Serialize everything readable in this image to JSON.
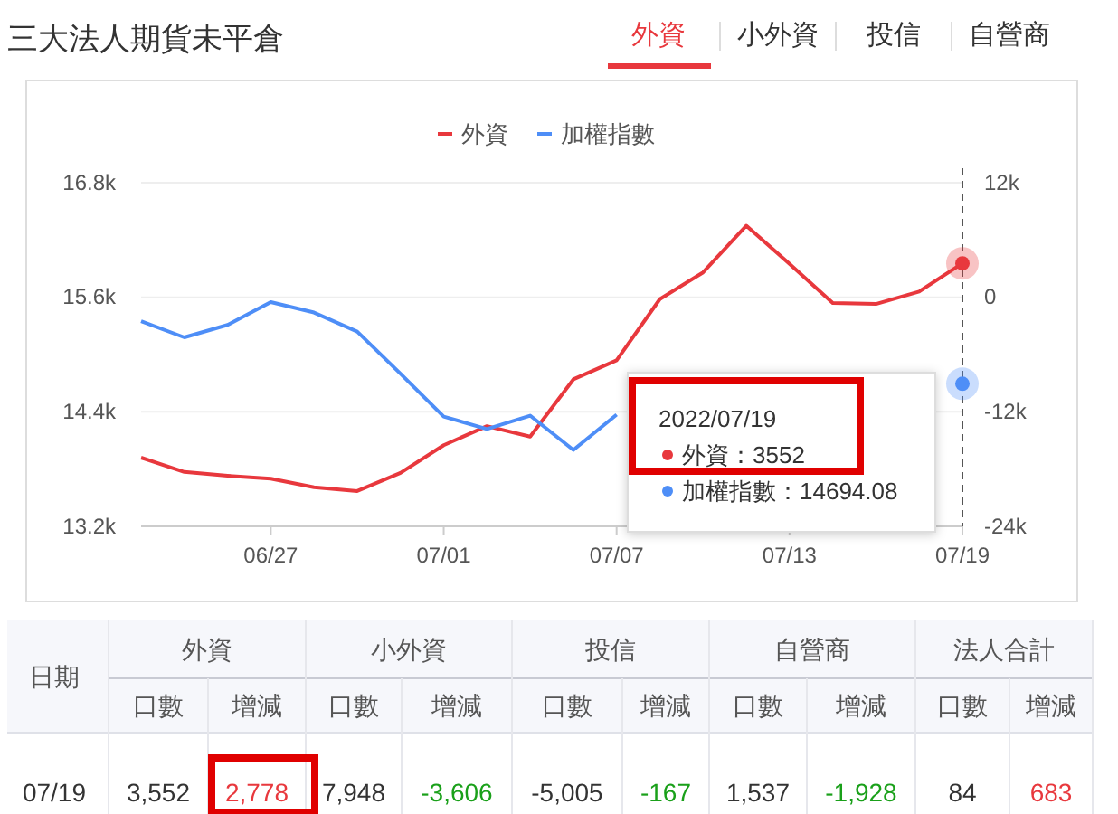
{
  "chart_data": [
    {
      "type": "other",
      "title": "三大法人期貨未平倉",
      "categories": [
        "外資",
        "小外資",
        "投信",
        "自營商"
      ]
    },
    {
      "type": "line",
      "categories": [
        null,
        null,
        null,
        "06/27",
        null,
        null,
        null,
        "07/01",
        null,
        null,
        null,
        "07/07",
        null,
        null,
        null,
        "07/13",
        null,
        null,
        null,
        "07/19"
      ],
      "series": [
        {
          "name": "外資",
          "color": "#e8383d",
          "axis": "y2",
          "values": [
            -16800,
            -18300,
            -18700,
            -19000,
            -19900,
            -20300,
            -18400,
            -15500,
            -13500,
            -14600,
            -8600,
            -6600,
            -200,
            2600,
            7500,
            3500,
            -600,
            -700,
            600,
            3552
          ]
        },
        {
          "name": "加權指數",
          "color": "#4e8ef7",
          "values": [
            15350,
            15180,
            15310,
            15550,
            15440,
            15240,
            14800,
            14350,
            14220,
            14360,
            14000,
            14370,
            null,
            null,
            null,
            null,
            null,
            null,
            null,
            14694.08
          ]
        }
      ],
      "ylim": [
        13200,
        16800
      ],
      "yticks": [
        {
          "value": 13200,
          "label": "13.2k"
        },
        {
          "value": 14400,
          "label": "14.4k"
        },
        {
          "value": 15600,
          "label": "15.6k"
        },
        {
          "value": 16800,
          "label": "16.8k"
        }
      ],
      "y2lim": [
        -24000,
        12000
      ],
      "y2ticks": [
        {
          "value": -24000,
          "label": "-24k"
        },
        {
          "value": -12000,
          "label": "-12k"
        },
        0,
        {
          "value": 12000,
          "label": "12k"
        }
      ],
      "grid": "y",
      "legend": "top",
      "marker": "none",
      "line_style": "solid",
      "ref_lines": [
        {
          "axis": "x",
          "value": "07/19",
          "line_style": "dashed",
          "color": "#555555"
        }
      ],
      "annotations": [
        "2022/07/19",
        "外資：3552",
        "加權指數：14694.08"
      ]
    },
    {
      "type": "other",
      "annotations": [
        "日期",
        "外資",
        "小外資",
        "投信",
        "自營商",
        "法人合計",
        "口數",
        "增減",
        "口數",
        "增減",
        "口數",
        "增減",
        "口數",
        "增減",
        "口數",
        "增減",
        "07/19",
        "3,552",
        "2,778",
        "7,948",
        "-3,606",
        "-5,005",
        "-167",
        "1,537",
        "-1,928",
        "84",
        "683"
      ],
      "colors": [
        "#333333",
        "#333333",
        "#e8383d",
        "#333333",
        "#1aa01a",
        "#333333",
        "#1aa01a",
        "#333333",
        "#1aa01a",
        "#333333",
        "#e8383d"
      ]
    }
  ]
}
